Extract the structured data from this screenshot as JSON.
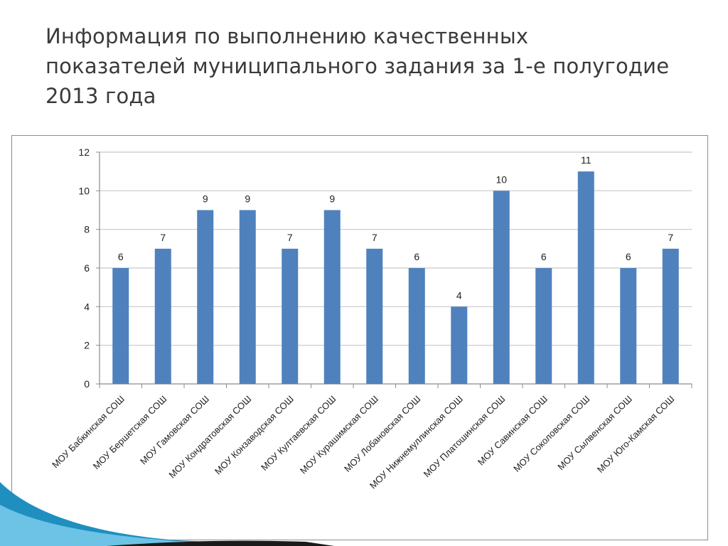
{
  "slide": {
    "title": "Информация по выполнению качественных показателей муниципального задания за 1-е полугодие 2013 года",
    "accent_color": "#1f8fbf",
    "bar_color": "#4f81bd"
  },
  "chart_data": {
    "type": "bar",
    "title": "",
    "xlabel": "",
    "ylabel": "",
    "categories": [
      "МОУ Бабкинская СОШ",
      "МОУ Бершетская СОШ",
      "МОУ Гамовская СОШ",
      "МОУ Кондратовская СОШ",
      "МОУ Конзаводская СОШ",
      "МОУ Култаевская СОШ",
      "МОУ Курашимская СОШ",
      "МОУ Лобановская СОШ",
      "МОУ Нижнемуллинская СОШ",
      "МОУ Платошинская СОШ",
      "МОУ Савинская СОШ",
      "МОУ Соколовская СОШ",
      "МОУ Сылвенская СОШ",
      "МОУ Юго-Камская СОШ"
    ],
    "values": [
      6,
      7,
      9,
      9,
      7,
      9,
      7,
      6,
      4,
      10,
      6,
      11,
      6,
      7
    ],
    "ylim": [
      0,
      12
    ],
    "yticks": [
      0,
      2,
      4,
      6,
      8,
      10,
      12
    ],
    "grid": true,
    "legend": "none",
    "data_labels": true
  }
}
